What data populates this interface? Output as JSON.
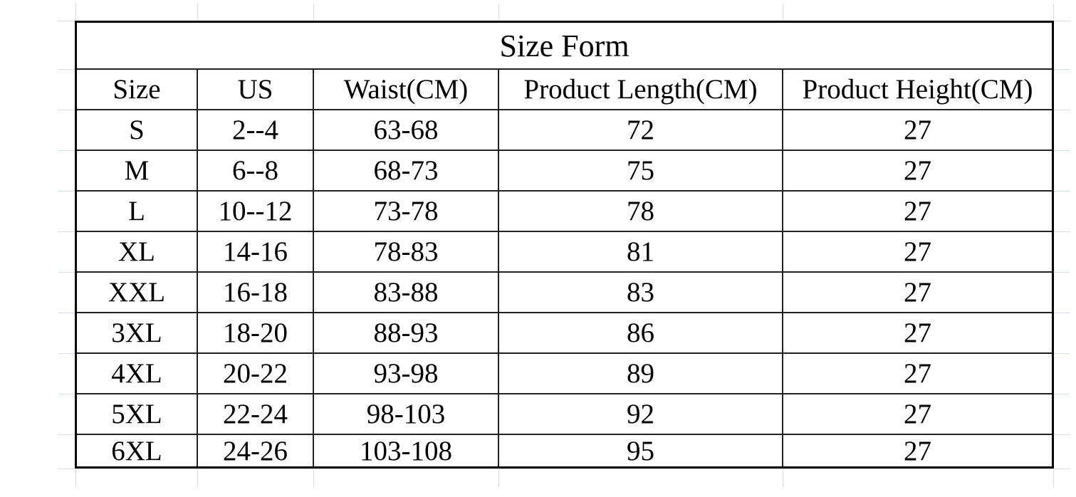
{
  "title": "Size Form",
  "headers": [
    "Size",
    "US",
    "Waist(CM)",
    "Product Length(CM)",
    "Product Height(CM)"
  ],
  "rows": [
    [
      "S",
      "2--4",
      "63-68",
      "72",
      "27"
    ],
    [
      "M",
      "6--8",
      "68-73",
      "75",
      "27"
    ],
    [
      "L",
      "10--12",
      "73-78",
      "78",
      "27"
    ],
    [
      "XL",
      "14-16",
      "78-83",
      "81",
      "27"
    ],
    [
      "XXL",
      "16-18",
      "83-88",
      "83",
      "27"
    ],
    [
      "3XL",
      "18-20",
      "88-93",
      "86",
      "27"
    ],
    [
      "4XL",
      "20-22",
      "93-98",
      "89",
      "27"
    ],
    [
      "5XL",
      "22-24",
      "98-103",
      "92",
      "27"
    ],
    [
      "6XL",
      "24-26",
      "103-108",
      "95",
      "27"
    ]
  ]
}
